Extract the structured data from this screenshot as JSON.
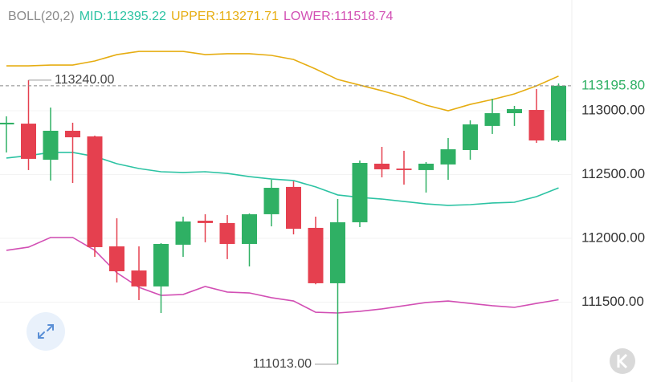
{
  "chart_data": {
    "type": "candlestick",
    "title": "BOLL(20,2)",
    "up_color": "#2fb064",
    "down_color": "#e5404f",
    "ylim": [
      110874,
      113868
    ],
    "yticks": [
      {
        "value": 113000,
        "label": "113000.00"
      },
      {
        "value": 112500,
        "label": "112500.00"
      },
      {
        "value": 112000,
        "label": "112000.00"
      },
      {
        "value": 111500,
        "label": "111500.00"
      }
    ],
    "grid": true,
    "candles": {
      "open": [
        112893,
        112899,
        112616,
        112843,
        112799,
        111937,
        111748,
        111623,
        111950,
        112138,
        112120,
        111956,
        112189,
        112403,
        112082,
        111648,
        112126,
        112585,
        112547,
        112535,
        112579,
        112692,
        112881,
        112981,
        113006,
        112767
      ],
      "high": [
        112956,
        113240,
        113025,
        112906,
        112805,
        112157,
        111937,
        111962,
        112170,
        112189,
        112182,
        112195,
        112459,
        112447,
        112170,
        112308,
        112610,
        112717,
        112686,
        112598,
        112786,
        112925,
        113094,
        113038,
        113170,
        113214
      ],
      "low": [
        112673,
        112535,
        112453,
        112434,
        111855,
        111654,
        111516,
        111415,
        111855,
        111969,
        111837,
        111780,
        112094,
        112031,
        111640,
        111013,
        112088,
        112478,
        112421,
        112359,
        112459,
        112616,
        112818,
        112881,
        112748,
        112755
      ],
      "close": [
        112906,
        112623,
        112843,
        112792,
        111931,
        111742,
        111623,
        111956,
        112132,
        112120,
        111956,
        112189,
        112396,
        112075,
        111648,
        112126,
        112591,
        112541,
        112535,
        112585,
        112698,
        112893,
        112981,
        113013,
        112767,
        113195.8
      ]
    },
    "bands": [
      {
        "name": "MID",
        "color": "#2cc3a3",
        "last_value": 112395.22,
        "values": [
          112629,
          112648,
          112673,
          112673,
          112642,
          112585,
          112547,
          112522,
          112516,
          112522,
          112509,
          112484,
          112465,
          112453,
          112403,
          112340,
          112321,
          112308,
          112289,
          112270,
          112258,
          112264,
          112277,
          112283,
          112327,
          112395.22
        ]
      },
      {
        "name": "UPPER",
        "color": "#e6ad12",
        "last_value": 113271.71,
        "values": [
          113352,
          113352,
          113358,
          113358,
          113390,
          113440,
          113465,
          113465,
          113465,
          113440,
          113447,
          113447,
          113434,
          113402,
          113327,
          113245,
          113201,
          113157,
          113107,
          113044,
          113000,
          113050,
          113088,
          113132,
          113195,
          113271.71
        ]
      },
      {
        "name": "LOWER",
        "color": "#d24fb4",
        "last_value": 111518.74,
        "values": [
          111906,
          111931,
          112007,
          112007,
          111906,
          111730,
          111616,
          111553,
          111560,
          111623,
          111579,
          111572,
          111535,
          111509,
          111421,
          111415,
          111428,
          111447,
          111472,
          111497,
          111509,
          111490,
          111472,
          111459,
          111490,
          111518.74
        ]
      }
    ],
    "max_label": {
      "value": 113240,
      "label": "113240.00"
    },
    "min_label": {
      "value": 111013,
      "label": "111013.00"
    },
    "last_price": {
      "value": 113195.8,
      "label": "113195.80"
    }
  }
}
